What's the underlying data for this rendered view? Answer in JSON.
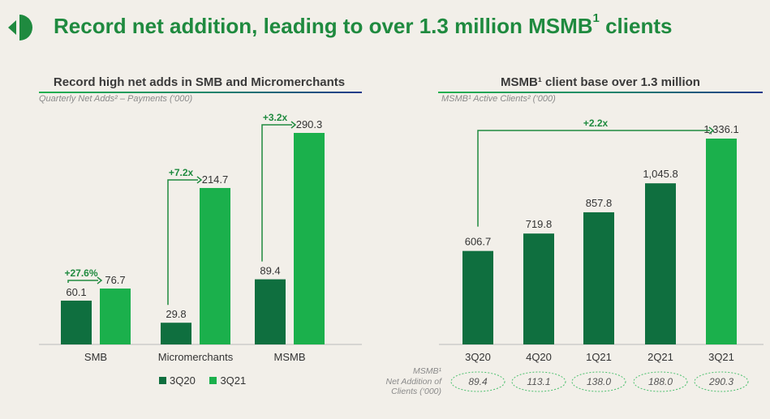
{
  "title": {
    "main": "Record net addition, leading to over 1.3 million MSMB",
    "sup": "1",
    "tail": " clients"
  },
  "left_panel": {
    "title": "Record high net adds in SMB and Micromerchants",
    "subtitle": "Quarterly Net Adds² – Payments (‘000)"
  },
  "right_panel": {
    "title": "MSMB¹ client base over 1.3 million",
    "subtitle": "MSMB¹ Active Clients² (‘000)",
    "side_label": [
      "MSMB¹",
      "Net Addition of",
      "Clients (‘000)"
    ]
  },
  "colors": {
    "dark": "#0f6f3f",
    "light": "#1bb04c",
    "accent": "#1f8a3f"
  },
  "chart_data": [
    {
      "type": "bar",
      "categories": [
        "SMB",
        "Micromerchants",
        "MSMB"
      ],
      "series": [
        {
          "name": "3Q20",
          "values": [
            60.1,
            29.8,
            89.4
          ],
          "labels": [
            "60.1",
            "29.8",
            "89.4"
          ]
        },
        {
          "name": "3Q21",
          "values": [
            76.7,
            214.7,
            290.3
          ],
          "labels": [
            "76.7",
            "214.7",
            "290.3"
          ]
        }
      ],
      "growth": [
        "+27.6%",
        "+7.2x",
        "+3.2x"
      ],
      "ylim": [
        0,
        290.3
      ]
    },
    {
      "type": "bar",
      "categories": [
        "3Q20",
        "4Q20",
        "1Q21",
        "2Q21",
        "3Q21"
      ],
      "values": [
        606.7,
        719.8,
        857.8,
        1045.8,
        1336.1
      ],
      "labels": [
        "606.7",
        "719.8",
        "857.8",
        "1,045.8",
        "1,336.1"
      ],
      "growth": "+2.2x",
      "net_additions": [
        "89.4",
        "113.1",
        "138.0",
        "188.0",
        "290.3"
      ],
      "ylim": [
        0,
        1336.1
      ]
    }
  ]
}
